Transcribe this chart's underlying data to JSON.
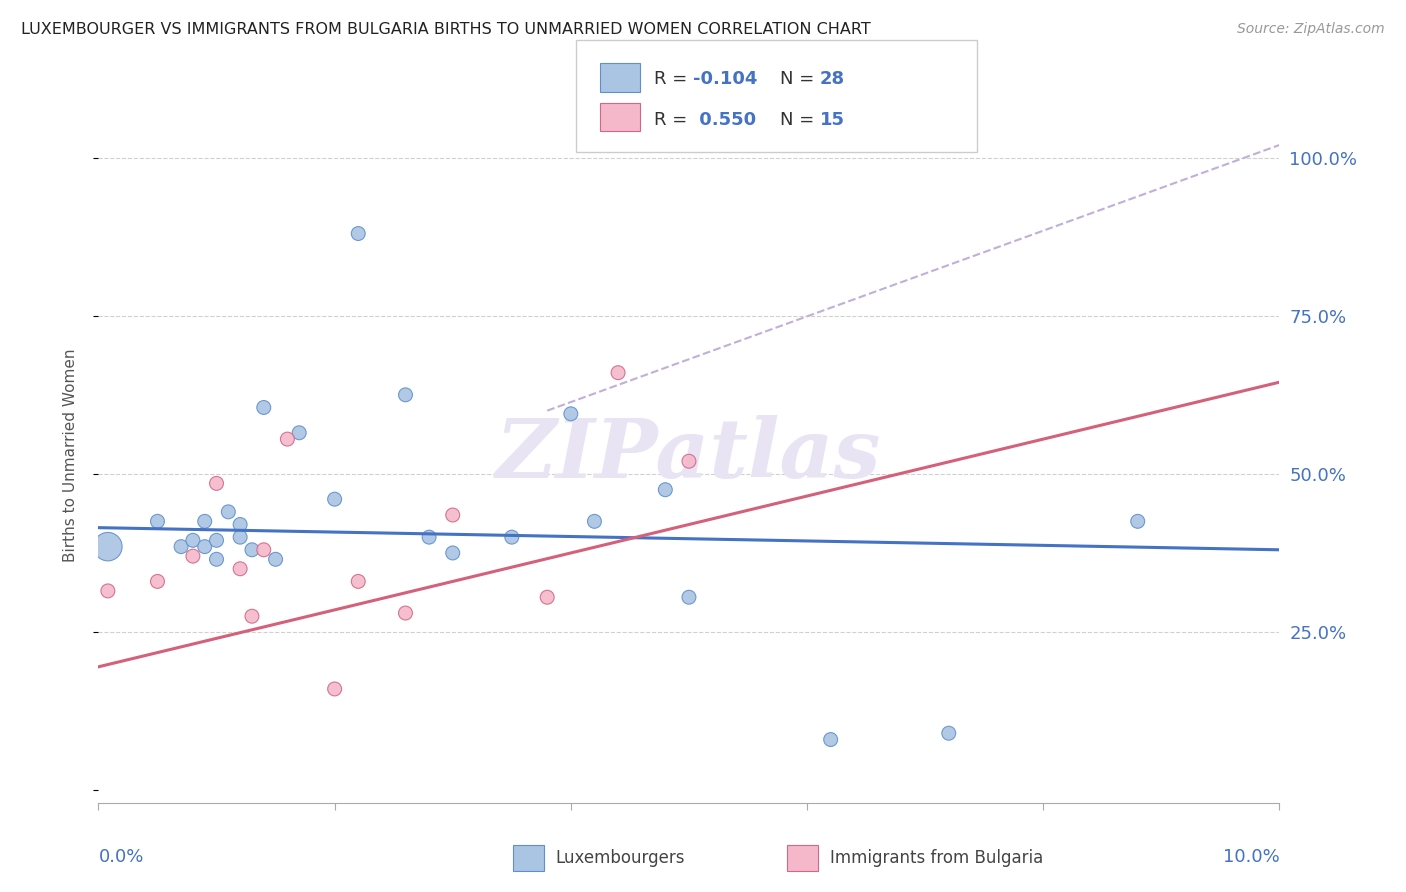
{
  "title": "LUXEMBOURGER VS IMMIGRANTS FROM BULGARIA BIRTHS TO UNMARRIED WOMEN CORRELATION CHART",
  "source": "Source: ZipAtlas.com",
  "ylabel": "Births to Unmarried Women",
  "xlim": [
    0.0,
    0.1
  ],
  "ylim": [
    -0.02,
    1.08
  ],
  "yticks": [
    0.0,
    0.25,
    0.5,
    0.75,
    1.0
  ],
  "ytick_labels": [
    "",
    "25.0%",
    "50.0%",
    "75.0%",
    "100.0%"
  ],
  "xticks": [
    0.0,
    0.02,
    0.04,
    0.06,
    0.08,
    0.1
  ],
  "blue_color": "#aac4e4",
  "pink_color": "#f5b8ca",
  "blue_edge_color": "#6090cc",
  "pink_edge_color": "#d06888",
  "blue_line_color": "#4472c4",
  "pink_line_color": "#d4607a",
  "dashed_line_color": "#c0b0d8",
  "watermark_text": "ZIPatlas",
  "watermark_color": "#e8e4f4",
  "blue_R": "-0.104",
  "blue_N": "28",
  "pink_R": "0.550",
  "pink_N": "15",
  "blue_points_x": [
    0.0008,
    0.005,
    0.007,
    0.008,
    0.009,
    0.009,
    0.01,
    0.01,
    0.011,
    0.012,
    0.012,
    0.013,
    0.014,
    0.015,
    0.017,
    0.02,
    0.022,
    0.026,
    0.028,
    0.03,
    0.035,
    0.04,
    0.042,
    0.048,
    0.05,
    0.062,
    0.072,
    0.088
  ],
  "blue_points_y": [
    0.385,
    0.425,
    0.385,
    0.395,
    0.425,
    0.385,
    0.365,
    0.395,
    0.44,
    0.42,
    0.4,
    0.38,
    0.605,
    0.365,
    0.565,
    0.46,
    0.88,
    0.625,
    0.4,
    0.375,
    0.4,
    0.595,
    0.425,
    0.475,
    0.305,
    0.08,
    0.09,
    0.425
  ],
  "blue_sizes": [
    420,
    100,
    100,
    100,
    100,
    100,
    100,
    100,
    100,
    100,
    100,
    100,
    100,
    100,
    100,
    100,
    100,
    100,
    100,
    100,
    100,
    100,
    100,
    100,
    100,
    100,
    100,
    100
  ],
  "pink_points_x": [
    0.0008,
    0.005,
    0.008,
    0.01,
    0.012,
    0.013,
    0.014,
    0.016,
    0.02,
    0.022,
    0.026,
    0.03,
    0.038,
    0.044,
    0.05
  ],
  "pink_points_y": [
    0.315,
    0.33,
    0.37,
    0.485,
    0.35,
    0.275,
    0.38,
    0.555,
    0.16,
    0.33,
    0.28,
    0.435,
    0.305,
    0.66,
    0.52
  ],
  "pink_sizes": [
    100,
    100,
    100,
    100,
    100,
    100,
    100,
    100,
    100,
    100,
    100,
    100,
    100,
    100,
    100
  ],
  "blue_trend_x": [
    0.0,
    0.1
  ],
  "blue_trend_y": [
    0.415,
    0.38
  ],
  "pink_trend_x": [
    0.0,
    0.1
  ],
  "pink_trend_y": [
    0.195,
    0.645
  ],
  "dashed_trend_x": [
    0.038,
    0.1
  ],
  "dashed_trend_y": [
    0.6,
    1.02
  ]
}
